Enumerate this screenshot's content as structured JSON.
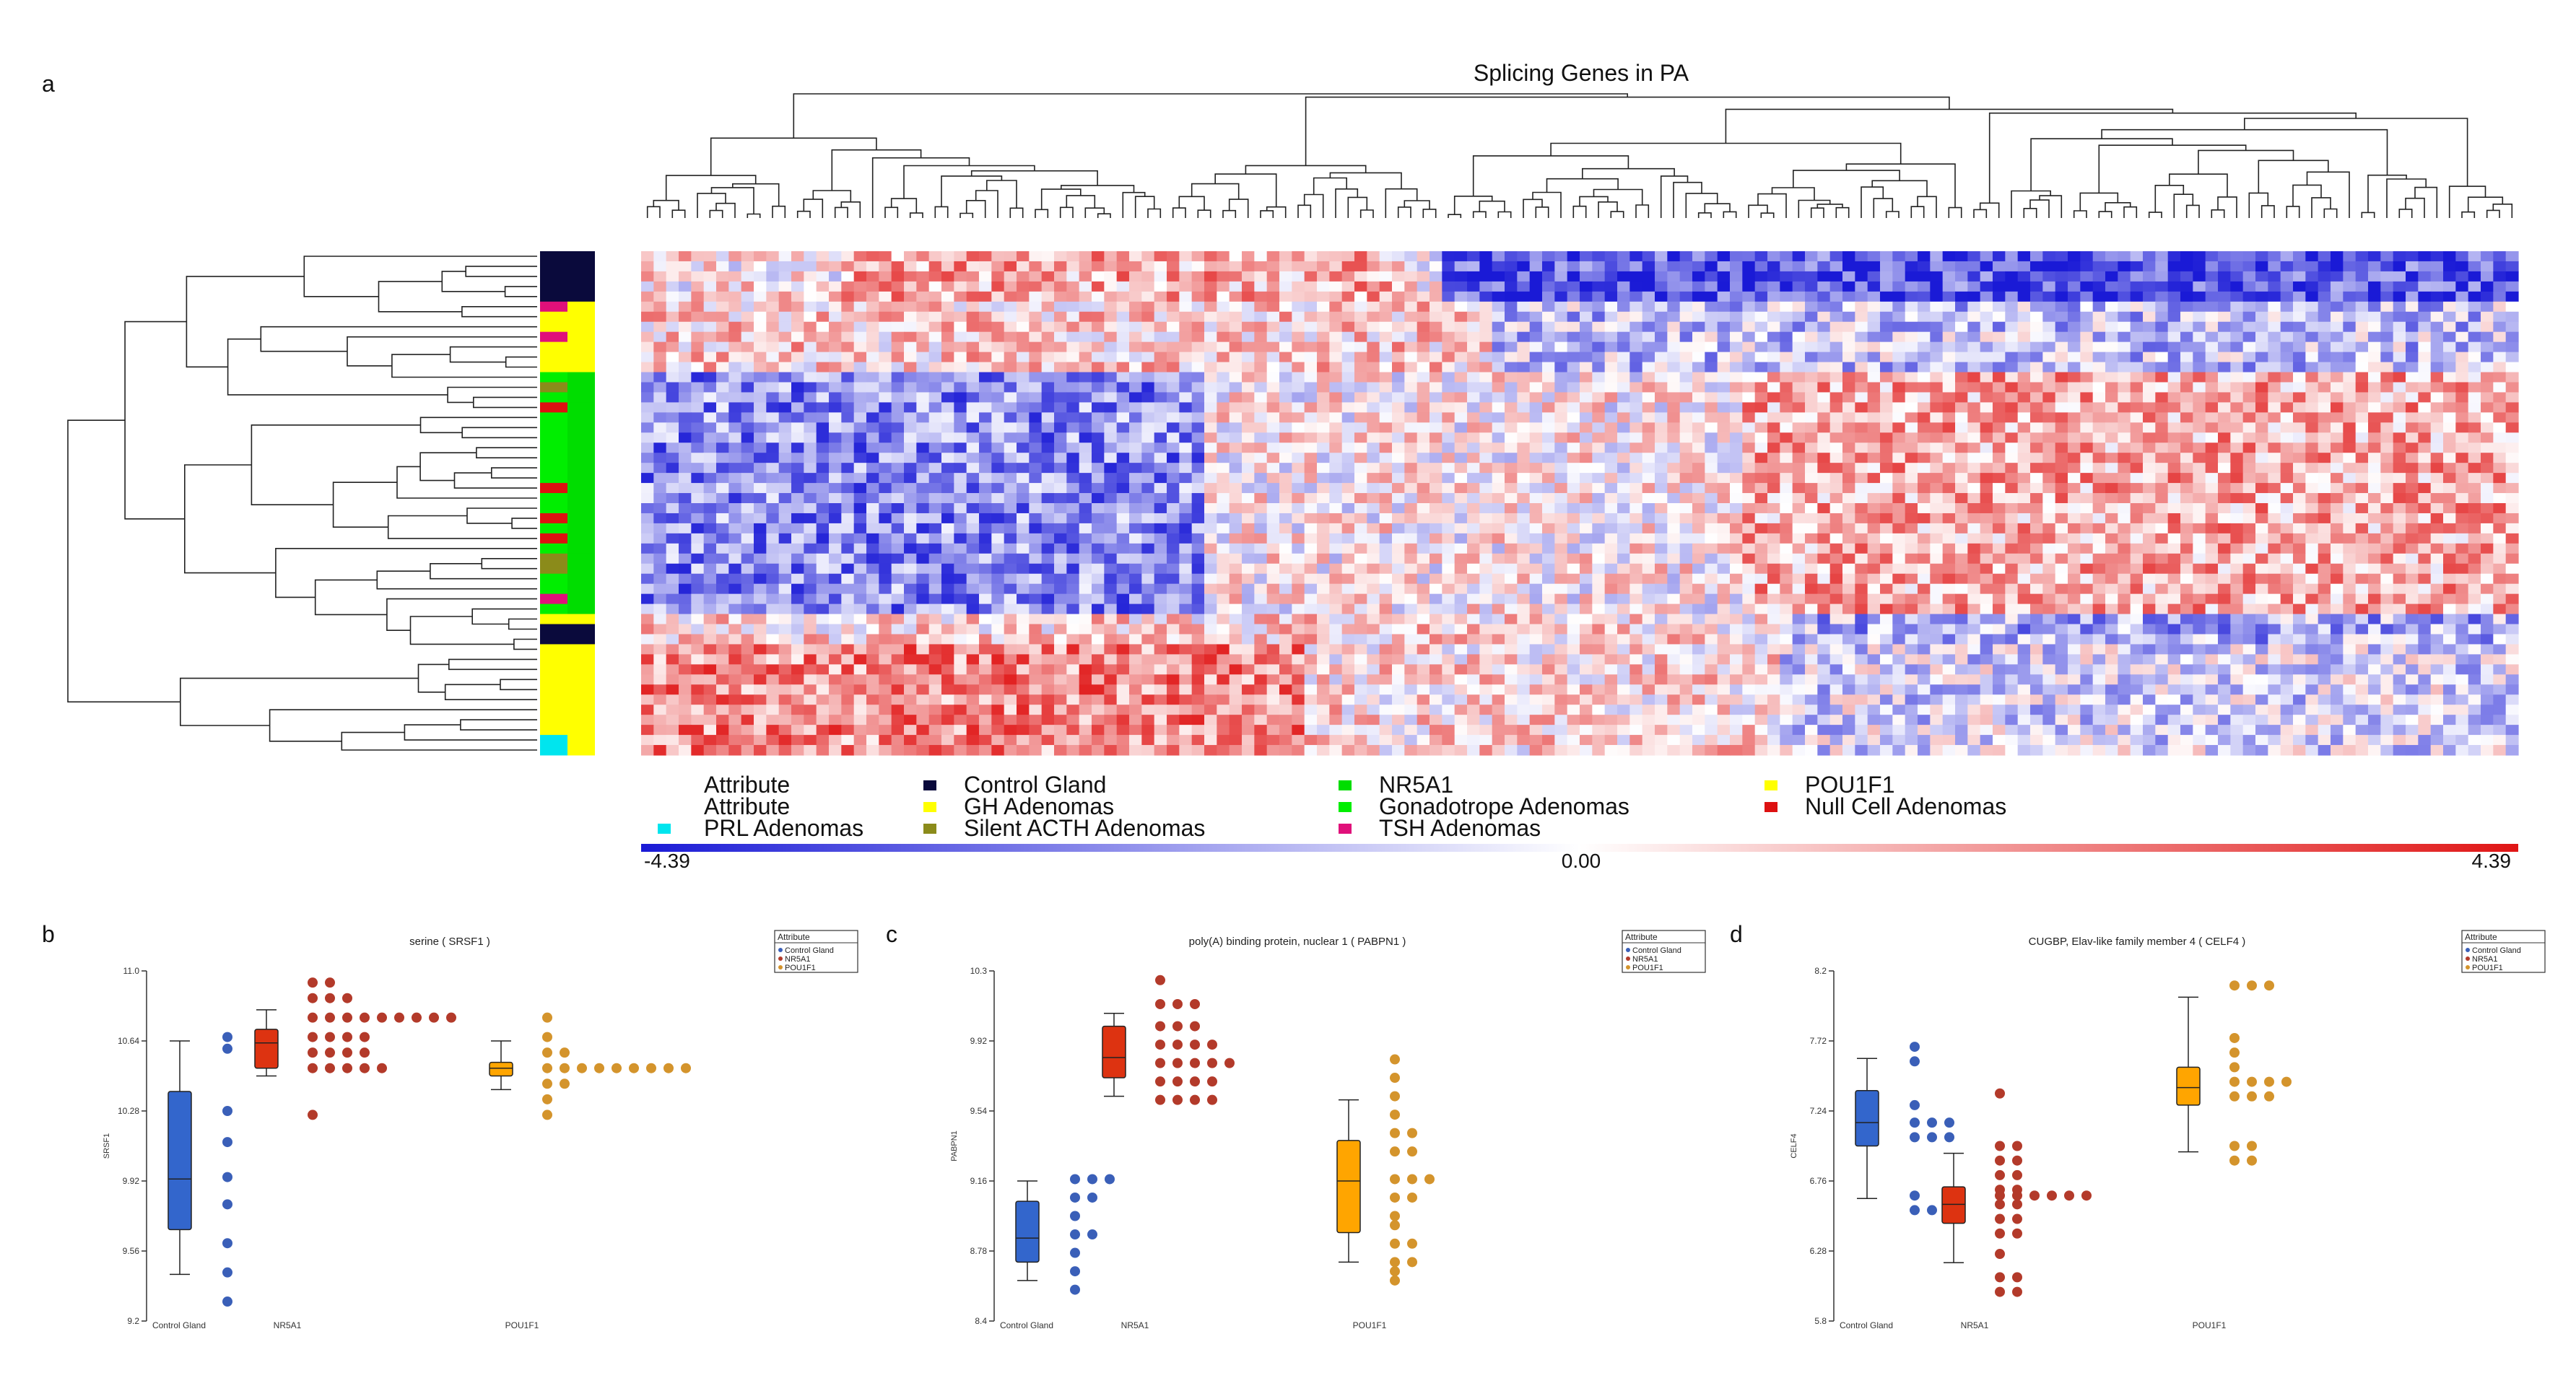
{
  "panels": {
    "a": "a",
    "b": "b",
    "c": "c",
    "d": "d"
  },
  "colors": {
    "control_gland": "#0a0a3c",
    "gh": "#ffff00",
    "nr5a1": "#00dd00",
    "gonadotrope": "#00ee00",
    "pou1f1": "#ffff00",
    "null_cell": "#dd1111",
    "prl": "#00e5ee",
    "silent_acth": "#8b8b1a",
    "tsh": "#e0107a",
    "box_control": "#3366cc",
    "box_nr5a1": "#dd3311",
    "box_pou1f1": "#ffa500",
    "dot_control": "#3a5fb8",
    "dot_nr5a1": "#b33a2a",
    "dot_pou1f1": "#d4942c",
    "heat_low": "#1a1ad6",
    "heat_mid": "#ffffff",
    "heat_high": "#e01515"
  },
  "chart_data": [
    {
      "type": "heatmap",
      "title": "Splicing Genes in PA",
      "legend": {
        "entries": [
          {
            "label": "Attribute",
            "color": null
          },
          {
            "label": "Control Gland",
            "color": "#0a0a3c"
          },
          {
            "label": "NR5A1",
            "color": "#00dd00"
          },
          {
            "label": "POU1F1",
            "color": "#ffff00"
          },
          {
            "label": "Attribute",
            "color": null
          },
          {
            "label": "GH Adenomas",
            "color": "#ffff00"
          },
          {
            "label": "Gonadotrope Adenomas",
            "color": "#00ee00"
          },
          {
            "label": "Null Cell Adenomas",
            "color": "#dd1111"
          },
          {
            "label": "PRL Adenomas",
            "color": "#00e5ee"
          },
          {
            "label": "Silent ACTH Adenomas",
            "color": "#8b8b1a"
          },
          {
            "label": "TSH Adenomas",
            "color": "#e0107a"
          }
        ]
      },
      "colorbar": {
        "min": -4.39,
        "mid": 0.0,
        "max": 4.39,
        "min_label": "-4.39",
        "mid_label": "0.00",
        "max_label": "4.39"
      },
      "sample_attributes_outer": [
        "Control Gland",
        "Control Gland",
        "Control Gland",
        "Control Gland",
        "Control Gland",
        "POU1F1",
        "POU1F1",
        "POU1F1",
        "POU1F1",
        "POU1F1",
        "POU1F1",
        "POU1F1",
        "NR5A1",
        "NR5A1",
        "NR5A1",
        "NR5A1",
        "NR5A1",
        "NR5A1",
        "NR5A1",
        "NR5A1",
        "NR5A1",
        "NR5A1",
        "NR5A1",
        "NR5A1",
        "NR5A1",
        "NR5A1",
        "NR5A1",
        "NR5A1",
        "NR5A1",
        "NR5A1",
        "NR5A1",
        "NR5A1",
        "NR5A1",
        "NR5A1",
        "NR5A1",
        "NR5A1",
        "POU1F1",
        "Control Gland",
        "Control Gland",
        "POU1F1",
        "POU1F1",
        "POU1F1",
        "POU1F1",
        "POU1F1",
        "POU1F1",
        "POU1F1",
        "POU1F1",
        "POU1F1",
        "POU1F1",
        "POU1F1"
      ],
      "sample_attributes_inner": [
        "Control Gland",
        "Control Gland",
        "Control Gland",
        "Control Gland",
        "Control Gland",
        "TSH Adenomas",
        "GH Adenomas",
        "GH Adenomas",
        "TSH Adenomas",
        "GH Adenomas",
        "GH Adenomas",
        "GH Adenomas",
        "Gonadotrope Adenomas",
        "Silent ACTH Adenomas",
        "Gonadotrope Adenomas",
        "Null Cell Adenomas",
        "Gonadotrope Adenomas",
        "Gonadotrope Adenomas",
        "Gonadotrope Adenomas",
        "Gonadotrope Adenomas",
        "Gonadotrope Adenomas",
        "Gonadotrope Adenomas",
        "Gonadotrope Adenomas",
        "Null Cell Adenomas",
        "Gonadotrope Adenomas",
        "Gonadotrope Adenomas",
        "Null Cell Adenomas",
        "Gonadotrope Adenomas",
        "Null Cell Adenomas",
        "Gonadotrope Adenomas",
        "Silent ACTH Adenomas",
        "Silent ACTH Adenomas",
        "Gonadotrope Adenomas",
        "Gonadotrope Adenomas",
        "TSH Adenomas",
        "Gonadotrope Adenomas",
        "GH Adenomas",
        "Control Gland",
        "Control Gland",
        "GH Adenomas",
        "GH Adenomas",
        "GH Adenomas",
        "GH Adenomas",
        "GH Adenomas",
        "GH Adenomas",
        "GH Adenomas",
        "GH Adenomas",
        "GH Adenomas",
        "PRL Adenomas",
        "PRL Adenomas"
      ],
      "value_pattern": "rows 0-4 blue on right half, red mid-left; rows 12-32 blue on left, red on right; rows 36-49 red on left; mostly near-zero elsewhere"
    },
    {
      "type": "box",
      "panel": "b",
      "title": "serine ( SRSF1 )",
      "ylabel": "SRSF1",
      "ylim": [
        9.2,
        11.0
      ],
      "ytick_labels": [
        "9.2",
        "9.56",
        "9.92",
        "10.28",
        "10.64",
        "11.0"
      ],
      "categories": [
        "Control Gland",
        "NR5A1",
        "POU1F1"
      ],
      "legend_title": "Attribute",
      "legend": [
        "Control Gland",
        "NR5A1",
        "POU1F1"
      ],
      "boxes": [
        {
          "min": 9.44,
          "q1": 9.67,
          "median": 9.93,
          "q3": 10.38,
          "max": 10.64
        },
        {
          "min": 10.46,
          "q1": 10.5,
          "median": 10.63,
          "q3": 10.7,
          "max": 10.8
        },
        {
          "min": 10.39,
          "q1": 10.46,
          "median": 10.5,
          "q3": 10.53,
          "max": 10.64
        }
      ],
      "points": [
        [
          10.66,
          10.6,
          10.28,
          10.12,
          9.94,
          9.8,
          9.6,
          9.45,
          9.3
        ],
        [
          10.94,
          10.94,
          10.86,
          10.86,
          10.86,
          10.76,
          10.76,
          10.76,
          10.76,
          10.76,
          10.76,
          10.76,
          10.76,
          10.76,
          10.66,
          10.66,
          10.66,
          10.66,
          10.58,
          10.58,
          10.58,
          10.58,
          10.5,
          10.5,
          10.5,
          10.5,
          10.5,
          10.26
        ],
        [
          10.76,
          10.66,
          10.58,
          10.58,
          10.5,
          10.5,
          10.5,
          10.5,
          10.5,
          10.5,
          10.5,
          10.5,
          10.5,
          10.42,
          10.42,
          10.34,
          10.26
        ]
      ]
    },
    {
      "type": "box",
      "panel": "c",
      "title": "poly(A) binding protein, nuclear 1  ( PABPN1 )",
      "ylabel": "PABPN1",
      "ylim": [
        8.4,
        10.3
      ],
      "ytick_labels": [
        "8.4",
        "8.78",
        "9.16",
        "9.54",
        "9.92",
        "10.3"
      ],
      "categories": [
        "Control Gland",
        "NR5A1",
        "POU1F1"
      ],
      "legend_title": "Attribute",
      "legend": [
        "Control Gland",
        "NR5A1",
        "POU1F1"
      ],
      "boxes": [
        {
          "min": 8.62,
          "q1": 8.72,
          "median": 8.85,
          "q3": 9.05,
          "max": 9.16
        },
        {
          "min": 9.62,
          "q1": 9.72,
          "median": 9.83,
          "q3": 10.0,
          "max": 10.07
        },
        {
          "min": 8.72,
          "q1": 8.88,
          "median": 9.16,
          "q3": 9.38,
          "max": 9.6
        }
      ],
      "points": [
        [
          9.17,
          9.17,
          9.17,
          9.07,
          9.07,
          8.97,
          8.87,
          8.87,
          8.77,
          8.67,
          8.57
        ],
        [
          10.25,
          10.12,
          10.12,
          10.12,
          10.0,
          10.0,
          10.0,
          9.9,
          9.9,
          9.9,
          9.9,
          9.8,
          9.8,
          9.8,
          9.8,
          9.8,
          9.7,
          9.7,
          9.7,
          9.7,
          9.6,
          9.6,
          9.6,
          9.6
        ],
        [
          9.82,
          9.72,
          9.62,
          9.52,
          9.42,
          9.42,
          9.32,
          9.32,
          9.17,
          9.17,
          9.17,
          9.07,
          9.07,
          8.97,
          8.92,
          8.82,
          8.82,
          8.72,
          8.72,
          8.67,
          8.62
        ]
      ]
    },
    {
      "type": "box",
      "panel": "d",
      "title": "CUGBP, Elav-like family member 4  ( CELF4 )",
      "ylabel": "CELF4",
      "ylim": [
        5.8,
        8.2
      ],
      "ytick_labels": [
        "5.8",
        "6.28",
        "6.76",
        "7.24",
        "7.72",
        "8.2"
      ],
      "categories": [
        "Control Gland",
        "NR5A1",
        "POU1F1"
      ],
      "legend_title": "Attribute",
      "legend": [
        "Control Gland",
        "NR5A1",
        "POU1F1"
      ],
      "boxes": [
        {
          "min": 6.64,
          "q1": 7.0,
          "median": 7.16,
          "q3": 7.38,
          "max": 7.6
        },
        {
          "min": 6.2,
          "q1": 6.47,
          "median": 6.6,
          "q3": 6.72,
          "max": 6.95
        },
        {
          "min": 6.96,
          "q1": 7.28,
          "median": 7.4,
          "q3": 7.54,
          "max": 8.02
        }
      ],
      "points": [
        [
          7.68,
          7.58,
          7.28,
          7.16,
          7.16,
          7.16,
          7.06,
          7.06,
          7.06,
          6.66,
          6.56,
          6.56
        ],
        [
          7.36,
          7.0,
          7.0,
          6.9,
          6.9,
          6.8,
          6.8,
          6.7,
          6.7,
          6.66,
          6.66,
          6.66,
          6.66,
          6.66,
          6.66,
          6.6,
          6.6,
          6.5,
          6.5,
          6.4,
          6.4,
          6.26,
          6.1,
          6.1,
          6.0,
          6.0
        ],
        [
          8.1,
          8.1,
          8.1,
          7.74,
          7.64,
          7.54,
          7.44,
          7.44,
          7.44,
          7.44,
          7.34,
          7.34,
          7.34,
          7.0,
          7.0,
          6.9,
          6.9
        ]
      ]
    }
  ]
}
